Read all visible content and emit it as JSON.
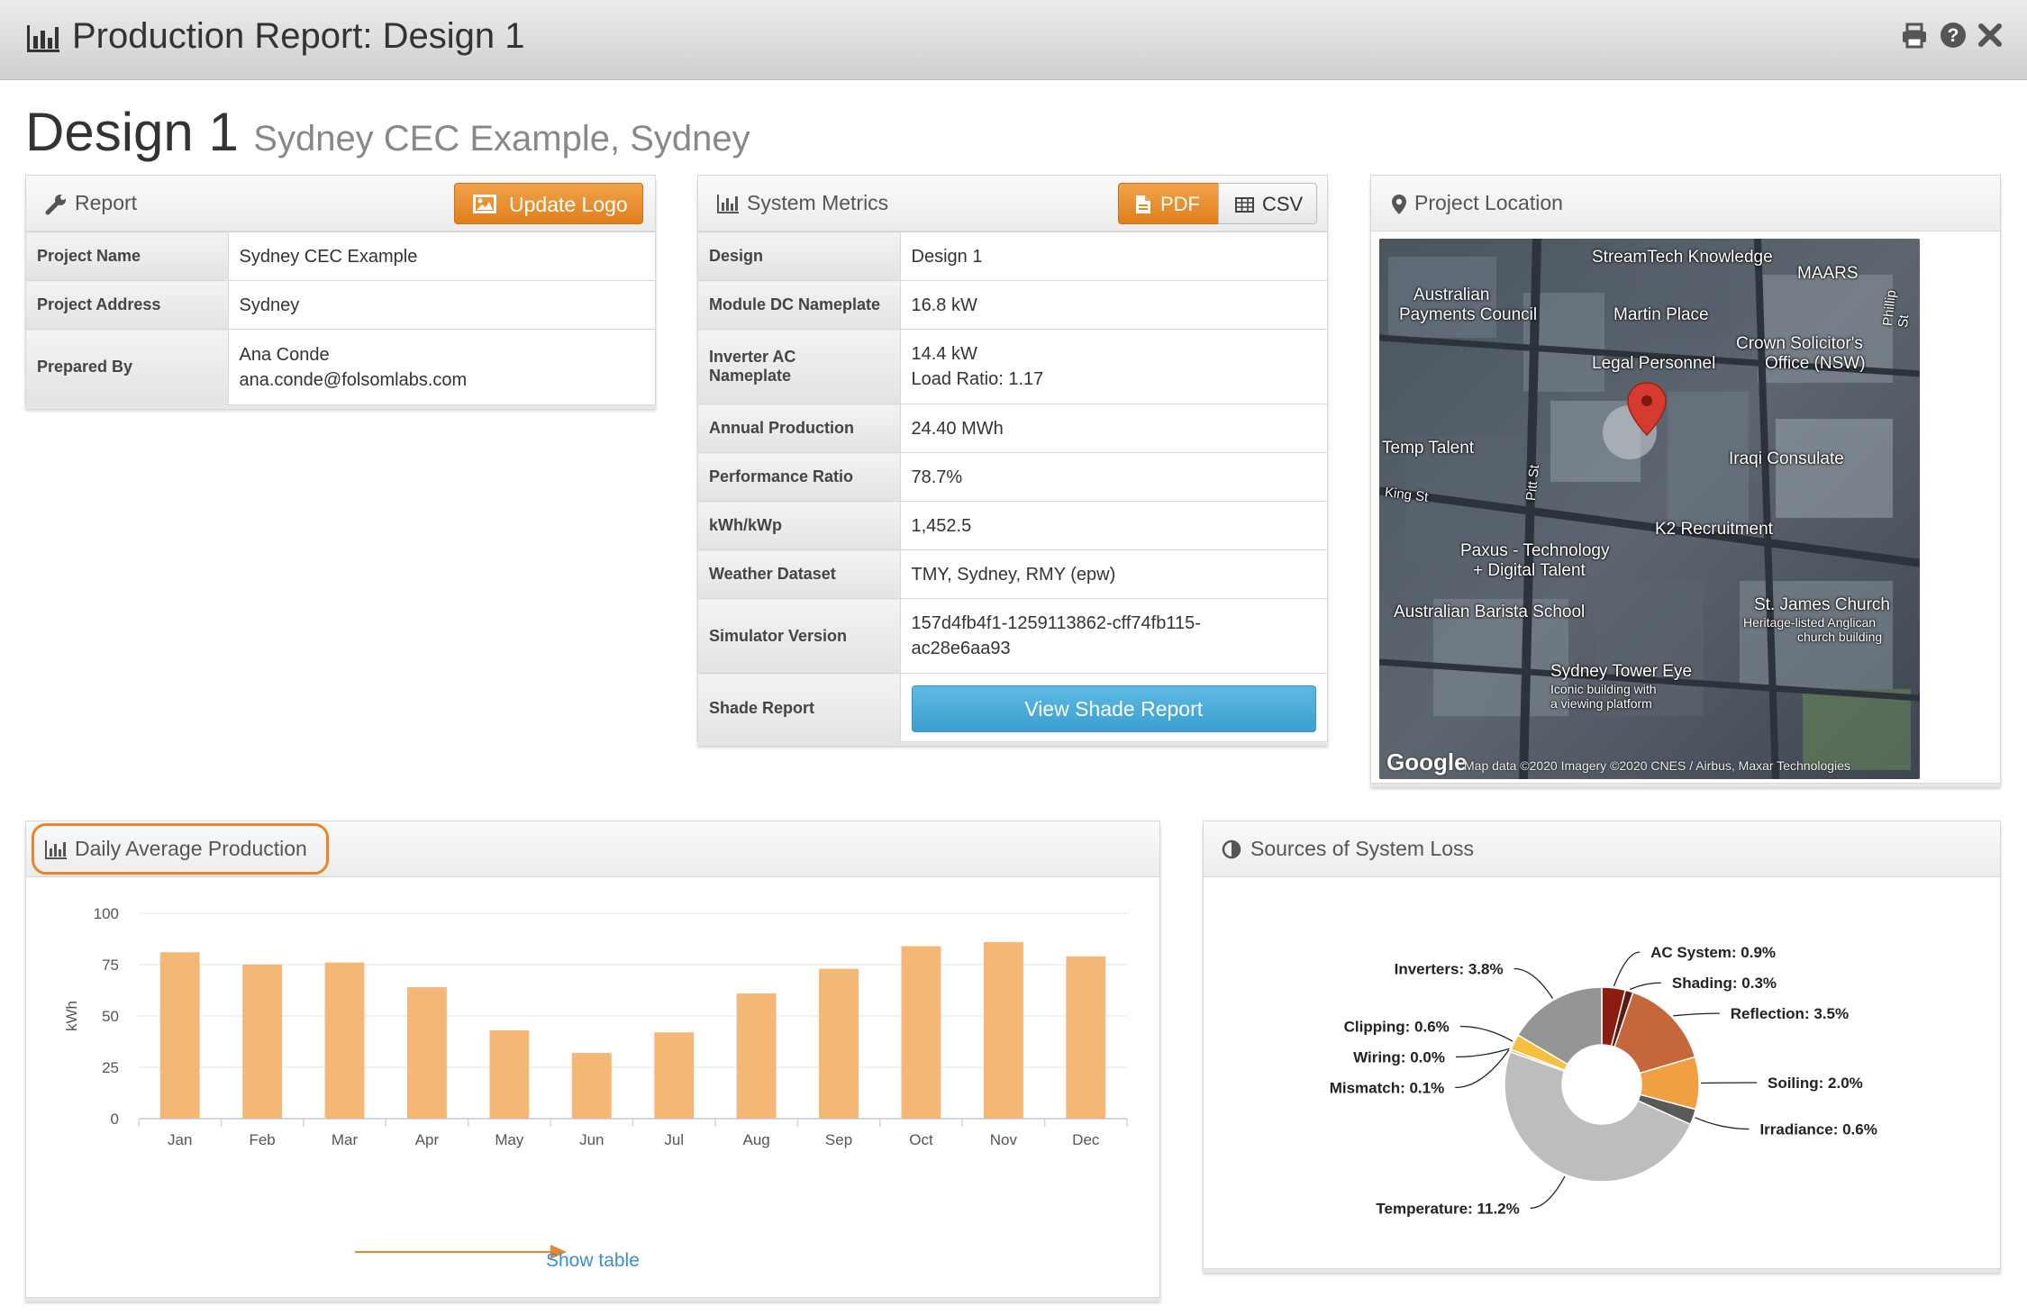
{
  "window": {
    "title": "Production Report: Design 1",
    "icons": [
      "bar-chart-icon",
      "print-icon",
      "help-icon",
      "close-icon"
    ]
  },
  "heading": {
    "design": "Design 1",
    "project": "Sydney CEC Example, Sydney"
  },
  "report_panel": {
    "title": "Report",
    "update_logo_label": "Update Logo",
    "rows": [
      {
        "key": "Project Name",
        "value": "Sydney CEC Example"
      },
      {
        "key": "Project Address",
        "value": "Sydney"
      },
      {
        "key": "Prepared By",
        "value": "Ana Conde",
        "value2": "ana.conde@folsomlabs.com"
      }
    ]
  },
  "metrics_panel": {
    "title": "System Metrics",
    "pdf_label": "PDF",
    "csv_label": "CSV",
    "rows": [
      {
        "key": "Design",
        "value": "Design 1"
      },
      {
        "key": "Module DC Nameplate",
        "value": "16.8 kW"
      },
      {
        "key": "Inverter AC",
        "key2": "Nameplate",
        "value": "14.4 kW",
        "value2": "Load Ratio: 1.17"
      },
      {
        "key": "Annual Production",
        "value": "24.40 MWh"
      },
      {
        "key": "Performance Ratio",
        "value": "78.7%"
      },
      {
        "key": "kWh/kWp",
        "value": "1,452.5"
      },
      {
        "key": "Weather Dataset",
        "value": "TMY, Sydney, RMY (epw)"
      },
      {
        "key": "Simulator Version",
        "value": "157d4fb4f1-1259113862-cff74fb115-",
        "value2": "ac28e6aa93"
      },
      {
        "key": "Shade Report",
        "button": "View Shade Report"
      }
    ]
  },
  "location_panel": {
    "title": "Project Location",
    "map_labels": [
      "StreamTech Knowledge",
      "MAARS",
      "Australian",
      "Payments Council",
      "Martin Place",
      "Legal Personnel",
      "Crown Solicitor's",
      "Office (NSW)",
      "Phillip St",
      "Temp Talent",
      "Pitt St",
      "King St",
      "Iraqi Consulate",
      "K2 Recruitment",
      "Paxus - Technology",
      "+ Digital Talent",
      "Australian Barista School",
      "St. James Church",
      "Heritage-listed Anglican",
      "church building",
      "Sydney Tower Eye",
      "Iconic building with",
      "a viewing platform"
    ],
    "google_logo": "Google",
    "attribution": "Map data ©2020 Imagery ©2020 CNES / Airbus, Maxar Technologies"
  },
  "daily_panel": {
    "title": "Daily Average Production",
    "show_table": "Show table",
    "highlight_color": "#e8872a"
  },
  "loss_panel": {
    "title": "Sources of System Loss"
  },
  "chart_data": [
    {
      "type": "bar",
      "categories": [
        "Jan",
        "Feb",
        "Mar",
        "Apr",
        "May",
        "Jun",
        "Jul",
        "Aug",
        "Sep",
        "Oct",
        "Nov",
        "Dec"
      ],
      "values": [
        81,
        75,
        76,
        64,
        43,
        32,
        42,
        61,
        73,
        84,
        86,
        79
      ],
      "ylabel": "kWh",
      "ylim": [
        0,
        100
      ],
      "yticks": [
        "100",
        "75",
        "50",
        "25",
        "0"
      ],
      "ytick_values": [
        100,
        75,
        50,
        25,
        0
      ],
      "grid": true,
      "color": "#f5b775"
    },
    {
      "type": "pie",
      "slices": [
        {
          "label": "AC System: 0.9%",
          "value": 0.9,
          "color": "#8b1c12"
        },
        {
          "label": "Shading: 0.3%",
          "value": 0.3,
          "color": "#5a1a10"
        },
        {
          "label": "Reflection: 3.5%",
          "value": 3.5,
          "color": "#c4673a"
        },
        {
          "label": "Soiling: 2.0%",
          "value": 2.0,
          "color": "#f0a040"
        },
        {
          "label": "Irradiance: 0.6%",
          "value": 0.6,
          "color": "#5a5a5a"
        },
        {
          "label": "Temperature: 11.2%",
          "value": 11.2,
          "color": "#bdbdbd"
        },
        {
          "label": "Mismatch: 0.1%",
          "value": 0.1,
          "color": "#e0c080"
        },
        {
          "label": "Wiring: 0.0%",
          "value": 0.0,
          "color": "#c8c8c8"
        },
        {
          "label": "Clipping: 0.6%",
          "value": 0.6,
          "color": "#f5c040"
        },
        {
          "label": "Inverters: 3.8%",
          "value": 3.8,
          "color": "#959595"
        }
      ]
    }
  ]
}
